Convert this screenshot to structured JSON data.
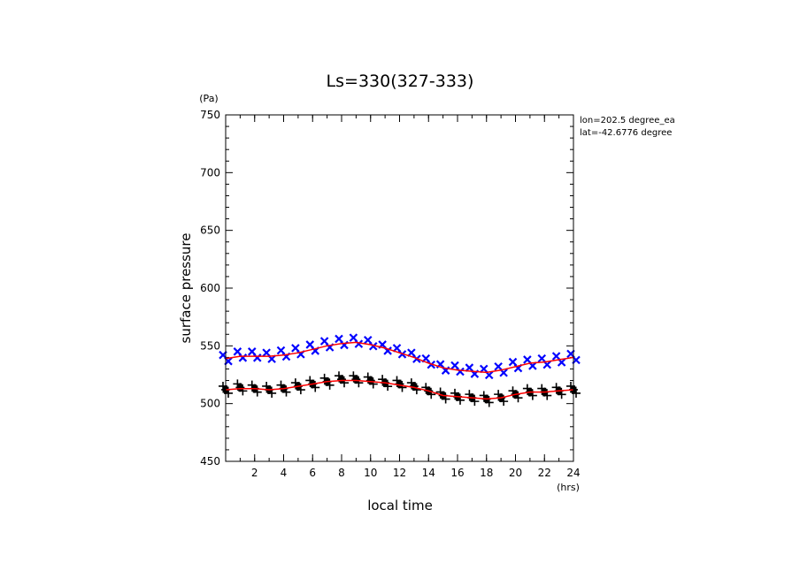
{
  "chart_data": {
    "type": "scatter",
    "title": "Ls=330(327-333)",
    "xlabel": "local time",
    "ylabel": "surface pressure",
    "x_unit": "(hrs)",
    "y_unit": "(Pa)",
    "xlim": [
      0,
      24
    ],
    "ylim": [
      450,
      750
    ],
    "x_ticks": [
      2,
      4,
      6,
      8,
      10,
      12,
      14,
      16,
      18,
      20,
      22,
      24
    ],
    "y_ticks": [
      450,
      500,
      550,
      600,
      650,
      700,
      750
    ],
    "grid": false,
    "annotations": [
      "lon=202.5 degree_ea",
      "lat=-42.6776 degree"
    ],
    "series": [
      {
        "color": "#0000ff",
        "marker": "x",
        "x": [
          0,
          1,
          2,
          3,
          4,
          5,
          6,
          7,
          8,
          9,
          10,
          11,
          12,
          13,
          14,
          15,
          16,
          17,
          18,
          19,
          20,
          21,
          22,
          23,
          24
        ],
        "y": [
          539,
          542,
          542,
          541,
          543,
          545,
          548,
          551,
          553,
          554,
          552,
          548,
          545,
          541,
          536,
          531,
          530,
          528,
          527,
          529,
          533,
          535,
          536,
          538,
          540
        ]
      },
      {
        "color": "#000000",
        "marker": "+",
        "x": [
          0,
          1,
          2,
          3,
          4,
          5,
          6,
          7,
          8,
          9,
          10,
          11,
          12,
          13,
          14,
          15,
          16,
          17,
          18,
          19,
          20,
          21,
          22,
          23,
          24
        ],
        "y": [
          512,
          514,
          513,
          512,
          513,
          515,
          517,
          519,
          521,
          521,
          520,
          518,
          517,
          515,
          511,
          507,
          506,
          505,
          504,
          505,
          508,
          510,
          510,
          511,
          512
        ]
      },
      {
        "color": "#ff0000",
        "marker": "line",
        "x": [
          0,
          1,
          2,
          3,
          4,
          5,
          6,
          7,
          8,
          9,
          10,
          11,
          12,
          13,
          14,
          15,
          16,
          17,
          18,
          19,
          20,
          21,
          22,
          23,
          24
        ],
        "y": [
          539,
          541,
          541,
          541,
          542,
          544,
          547,
          550,
          552,
          553,
          551,
          548,
          544,
          540,
          535,
          531,
          529,
          528,
          527,
          529,
          532,
          535,
          536,
          538,
          540
        ]
      },
      {
        "color": "#ff0000",
        "marker": "line",
        "x": [
          0,
          1,
          2,
          3,
          4,
          5,
          6,
          7,
          8,
          9,
          10,
          11,
          12,
          13,
          14,
          15,
          16,
          17,
          18,
          19,
          20,
          21,
          22,
          23,
          24
        ],
        "y": [
          512,
          513,
          513,
          512,
          513,
          515,
          517,
          519,
          520,
          520,
          519,
          518,
          516,
          514,
          511,
          507,
          506,
          505,
          504,
          505,
          508,
          510,
          510,
          511,
          512
        ]
      }
    ]
  }
}
